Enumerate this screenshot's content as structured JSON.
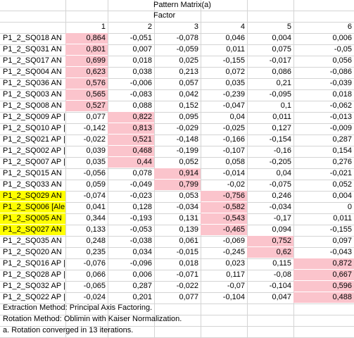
{
  "title": "Pattern Matrix(a)",
  "subtitle": "Factor",
  "columns": [
    "1",
    "2",
    "3",
    "4",
    "5",
    "6"
  ],
  "rows": [
    {
      "label": "P1_2_SQ018 AN",
      "values": [
        "0,864",
        "-0,051",
        "-0,078",
        "0,046",
        "0,004",
        "0,006"
      ],
      "hl": [
        0
      ]
    },
    {
      "label": "P1_2_SQ031 AN",
      "values": [
        "0,801",
        "0,007",
        "-0,059",
        "0,011",
        "0,075",
        "-0,05"
      ],
      "hl": [
        0
      ]
    },
    {
      "label": "P1_2_SQ017 AN",
      "values": [
        "0,699",
        "0,018",
        "0,025",
        "-0,155",
        "-0,017",
        "0,056"
      ],
      "hl": [
        0
      ]
    },
    {
      "label": "P1_2_SQ004 AN",
      "values": [
        "0,623",
        "0,038",
        "0,213",
        "0,072",
        "0,086",
        "-0,086"
      ],
      "hl": [
        0
      ]
    },
    {
      "label": "P1_2_SQ036 AN",
      "values": [
        "0,576",
        "-0,006",
        "0,057",
        "0,035",
        "0,21",
        "-0,039"
      ],
      "hl": [
        0
      ]
    },
    {
      "label": "P1_2_SQ003 AN",
      "values": [
        "0,565",
        "-0,083",
        "0,042",
        "-0,239",
        "-0,095",
        "0,018"
      ],
      "hl": [
        0
      ]
    },
    {
      "label": "P1_2_SQ008 AN",
      "values": [
        "0,527",
        "0,088",
        "0,152",
        "-0,047",
        "0,1",
        "-0,062"
      ],
      "hl": [
        0
      ]
    },
    {
      "label": "P1_2_SQ009 AP |",
      "values": [
        "0,077",
        "0,822",
        "0,095",
        "0,04",
        "0,011",
        "-0,013"
      ],
      "hl": [
        1
      ]
    },
    {
      "label": "P1_2_SQ010 AP |",
      "values": [
        "-0,142",
        "0,813",
        "-0,029",
        "-0,025",
        "0,127",
        "-0,009"
      ],
      "hl": [
        1
      ]
    },
    {
      "label": "P1_2_SQ021 AP |",
      "values": [
        "-0,022",
        "0,521",
        "-0,148",
        "-0,166",
        "-0,154",
        "0,287"
      ],
      "hl": [
        1
      ]
    },
    {
      "label": "P1_2_SQ002 AP |",
      "values": [
        "0,039",
        "0,468",
        "-0,199",
        "-0,107",
        "-0,16",
        "0,154"
      ],
      "hl": [
        1
      ]
    },
    {
      "label": "P1_2_SQ007 AP |",
      "values": [
        "0,035",
        "0,44",
        "0,052",
        "0,058",
        "-0,205",
        "0,276"
      ],
      "hl": [
        1
      ]
    },
    {
      "label": "P1_2_SQ015 AN",
      "values": [
        "-0,056",
        "0,078",
        "0,914",
        "-0,014",
        "0,04",
        "-0,021"
      ],
      "hl": [
        2
      ]
    },
    {
      "label": "P1_2_SQ033 AN",
      "values": [
        "0,059",
        "-0,049",
        "0,799",
        "-0,02",
        "-0,075",
        "0,052"
      ],
      "hl": [
        2
      ]
    },
    {
      "label": "P1_2_SQ029 AN",
      "values": [
        "-0,074",
        "-0,023",
        "0,053",
        "-0,756",
        "0,246",
        "0,004"
      ],
      "hl": [
        3
      ],
      "yellow": true
    },
    {
      "label": "P1_2_SQ006 [Ale",
      "values": [
        "0,041",
        "0,128",
        "-0,034",
        "-0,582",
        "-0,034",
        "0"
      ],
      "hl": [
        3
      ],
      "yellow": true
    },
    {
      "label": "P1_2_SQ005 AN",
      "values": [
        "0,344",
        "-0,193",
        "0,131",
        "-0,543",
        "-0,17",
        "0,011"
      ],
      "hl": [
        3
      ],
      "yellow": true
    },
    {
      "label": "P1_2_SQ027 AN",
      "values": [
        "0,133",
        "-0,053",
        "0,139",
        "-0,465",
        "0,094",
        "-0,155"
      ],
      "hl": [
        3
      ],
      "yellow": true
    },
    {
      "label": "P1_2_SQ035 AN",
      "values": [
        "0,248",
        "-0,038",
        "0,061",
        "-0,069",
        "0,752",
        "0,097"
      ],
      "hl": [
        4
      ]
    },
    {
      "label": "P1_2_SQ020 AN",
      "values": [
        "0,235",
        "0,034",
        "-0,015",
        "-0,245",
        "0,62",
        "-0,043"
      ],
      "hl": [
        4
      ]
    },
    {
      "label": "P1_2_SQ016 AP |",
      "values": [
        "-0,076",
        "-0,096",
        "0,018",
        "0,023",
        "0,115",
        "0,872"
      ],
      "hl": [
        5
      ]
    },
    {
      "label": "P1_2_SQ028 AP |",
      "values": [
        "0,066",
        "0,006",
        "-0,071",
        "0,117",
        "-0,08",
        "0,667"
      ],
      "hl": [
        5
      ]
    },
    {
      "label": "P1_2_SQ032 AP |",
      "values": [
        "-0,065",
        "0,287",
        "-0,022",
        "-0,07",
        "-0,104",
        "0,596"
      ],
      "hl": [
        5
      ]
    },
    {
      "label": "P1_2_SQ022 AP |",
      "values": [
        "-0,024",
        "0,201",
        "0,077",
        "-0,104",
        "0,047",
        "0,488"
      ],
      "hl": [
        5
      ]
    }
  ],
  "footer": [
    "Extraction Method: Principal Axis Factoring.",
    "Rotation Method: Oblimin with Kaiser Normalization.",
    "a. Rotation converged in 13 iterations."
  ],
  "colors": {
    "highlight": "#fbc4cc",
    "yellow": "#ffff00",
    "gridline": "#d4d4d4"
  }
}
